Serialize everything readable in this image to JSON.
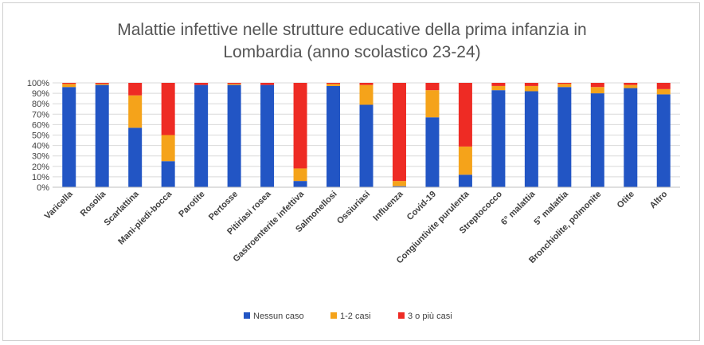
{
  "chart_data": {
    "type": "bar",
    "stacked": true,
    "normalized": true,
    "title": "Malattie infettive nelle strutture educative della prima infanzia in Lombardia (anno scolastico 23-24)",
    "title_lines": [
      "Malattie infettive nelle strutture educative della prima infanzia in",
      "Lombardia (anno scolastico 23-24)"
    ],
    "xlabel": "",
    "ylabel": "",
    "ylim": [
      0,
      100
    ],
    "yticks": [
      "0%",
      "10%",
      "20%",
      "30%",
      "40%",
      "50%",
      "60%",
      "70%",
      "80%",
      "90%",
      "100%"
    ],
    "legend_position": "bottom",
    "categories": [
      "Varicella",
      "Rosolia",
      "Scarlattina",
      "Mani-piedi-bocca",
      "Parotite",
      "Pertosse",
      "Pitiriasi rosea",
      "Gastroenterite infettiva",
      "Salmonellosi",
      "Ossiuriasi",
      "Influenza",
      "Covid-19",
      "Congiuntivite purulenta",
      "Streptococco",
      "6° malattia",
      "5° malattia",
      "Bronchiolite, polmonite",
      "Otite",
      "Altro"
    ],
    "series": [
      {
        "name": "Nessun caso",
        "color": "#2255c4",
        "values": [
          96,
          98,
          57,
          25,
          98,
          98,
          98,
          6,
          97,
          79,
          1,
          67,
          12,
          93,
          92,
          96,
          90,
          95,
          89
        ]
      },
      {
        "name": "1-2 casi",
        "color": "#f5a31a",
        "values": [
          3,
          1,
          31,
          25,
          0,
          1,
          0,
          12,
          2,
          19,
          5,
          26,
          27,
          4,
          5,
          3,
          6,
          3,
          5
        ]
      },
      {
        "name": "3 o più casi",
        "color": "#ee2b24",
        "values": [
          1,
          1,
          12,
          50,
          2,
          1,
          2,
          82,
          1,
          2,
          94,
          7,
          61,
          3,
          3,
          1,
          4,
          2,
          6
        ]
      }
    ]
  }
}
